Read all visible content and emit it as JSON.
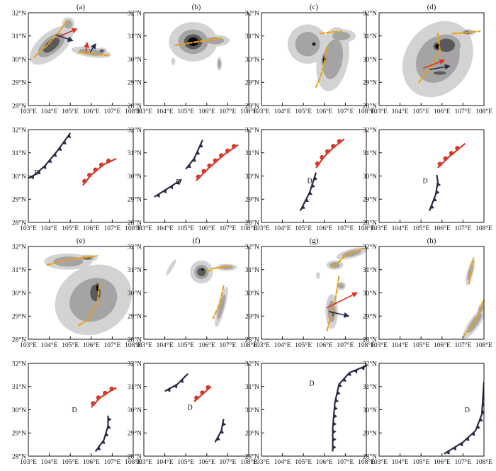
{
  "figure": {
    "lat_ticks": [
      "32°N",
      "31°N",
      "30°N",
      "29°N",
      "28°N"
    ],
    "lon_ticks": [
      "103°E",
      "104°E",
      "105°E",
      "106°E",
      "107°E",
      "108°E"
    ],
    "lat_range": [
      28,
      32
    ],
    "lon_range": [
      103,
      108
    ],
    "low_marker": "D",
    "colors": {
      "shade_light": "#d3d3d3",
      "shade_mid": "#a4a4a4",
      "shade_dark": "#5a5a5a",
      "core": "#050505",
      "shear_line": "#e8a21a",
      "arrow_red": "#d8322a",
      "arrow_navy": "#2a2c4e",
      "front_cold": "#2b2d48",
      "front_warm": "#d23a2c"
    }
  },
  "panels": [
    {
      "label": "(a)",
      "blobs": [
        {
          "lon": 104.1,
          "lat": 30.6,
          "rx": 1.25,
          "ry": 0.55,
          "rot": -40,
          "levels": 3
        },
        {
          "lon": 104.9,
          "lat": 31.5,
          "rx": 0.3,
          "ry": 0.3,
          "rot": 0,
          "levels": 2
        },
        {
          "lon": 106.0,
          "lat": 30.3,
          "rx": 0.95,
          "ry": 0.22,
          "rot": 8,
          "levels": 2
        },
        {
          "lon": 106.5,
          "lat": 30.35,
          "rx": 0.25,
          "ry": 0.15,
          "rot": 0,
          "levels": 3
        }
      ],
      "shear": [
        [
          [
            103.3,
            30.1
          ],
          [
            103.9,
            30.6
          ],
          [
            104.4,
            31.1
          ],
          [
            104.9,
            31.7
          ]
        ],
        [
          [
            105.4,
            30.3
          ],
          [
            105.9,
            30.25
          ],
          [
            106.4,
            30.2
          ],
          [
            106.9,
            30.15
          ]
        ]
      ],
      "arrows": [
        {
          "lon": 104.4,
          "lat": 30.95,
          "dlon": 0.9,
          "dlat": 0.35,
          "color": "red"
        },
        {
          "lon": 104.3,
          "lat": 31.05,
          "dlon": 0.8,
          "dlat": -0.25,
          "color": "navy"
        },
        {
          "lon": 105.75,
          "lat": 30.3,
          "dlon": 0.05,
          "dlat": 0.4,
          "color": "red"
        },
        {
          "lon": 105.95,
          "lat": 30.3,
          "dlon": 0.25,
          "dlat": 0.35,
          "color": "navy"
        }
      ]
    },
    {
      "label": "(b)",
      "blobs": [
        {
          "lon": 105.35,
          "lat": 30.75,
          "rx": 1.15,
          "ry": 0.85,
          "rot": 0,
          "levels": 4
        },
        {
          "lon": 106.4,
          "lat": 30.8,
          "rx": 0.7,
          "ry": 0.25,
          "rot": 0,
          "levels": 2
        },
        {
          "lon": 106.6,
          "lat": 29.8,
          "rx": 0.12,
          "ry": 0.3,
          "rot": 0,
          "levels": 2
        },
        {
          "lon": 104.4,
          "lat": 29.9,
          "rx": 0.1,
          "ry": 0.15,
          "rot": 0,
          "levels": 1
        }
      ],
      "shear": [
        [
          [
            104.5,
            30.6
          ],
          [
            105.2,
            30.7
          ],
          [
            105.9,
            30.8
          ],
          [
            106.7,
            30.9
          ]
        ]
      ],
      "arrows": []
    },
    {
      "label": "(c)",
      "blobs": [
        {
          "lon": 105.2,
          "lat": 30.65,
          "rx": 0.95,
          "ry": 0.85,
          "rot": 0,
          "levels": 2
        },
        {
          "lon": 106.4,
          "lat": 30.0,
          "rx": 0.75,
          "ry": 1.4,
          "rot": 10,
          "levels": 2
        },
        {
          "lon": 106.8,
          "lat": 31.0,
          "rx": 0.7,
          "ry": 0.3,
          "rot": 0,
          "levels": 2
        },
        {
          "lon": 105.5,
          "lat": 30.65,
          "rx": 0.25,
          "ry": 0.22,
          "rot": 0,
          "levels": 4
        },
        {
          "lon": 106.0,
          "lat": 30.0,
          "rx": 0.22,
          "ry": 0.5,
          "rot": 10,
          "levels": 4
        }
      ],
      "shear": [
        [
          [
            105.8,
            31.1
          ],
          [
            106.2,
            31.15
          ],
          [
            106.8,
            31.2
          ]
        ],
        [
          [
            106.1,
            30.5
          ],
          [
            106.0,
            29.8
          ],
          [
            105.8,
            29.2
          ],
          [
            105.6,
            28.8
          ]
        ]
      ],
      "arrows": []
    },
    {
      "label": "(d)",
      "blobs": [
        {
          "lon": 105.8,
          "lat": 30.0,
          "rx": 1.55,
          "ry": 1.75,
          "rot": 35,
          "levels": 2
        },
        {
          "lon": 106.2,
          "lat": 30.6,
          "rx": 1.1,
          "ry": 0.75,
          "rot": 0,
          "levels": 3
        },
        {
          "lon": 105.8,
          "lat": 30.55,
          "rx": 0.55,
          "ry": 0.45,
          "rot": 0,
          "levels": 4
        },
        {
          "lon": 105.9,
          "lat": 29.4,
          "rx": 0.8,
          "ry": 0.2,
          "rot": 0,
          "levels": 3
        },
        {
          "lon": 107.2,
          "lat": 31.15,
          "rx": 0.4,
          "ry": 0.15,
          "rot": 0,
          "levels": 3
        }
      ],
      "shear": [
        [
          [
            106.5,
            31.1
          ],
          [
            107.2,
            31.15
          ],
          [
            107.8,
            31.2
          ]
        ],
        [
          [
            105.8,
            31.1
          ],
          [
            105.9,
            30.4
          ],
          [
            105.6,
            29.8
          ],
          [
            104.9,
            29.0
          ]
        ]
      ],
      "arrows": [
        {
          "lon": 105.1,
          "lat": 29.6,
          "dlon": 1.0,
          "dlat": 0.35,
          "color": "red"
        },
        {
          "lon": 105.4,
          "lat": 29.55,
          "dlon": 0.95,
          "dlat": 0.15,
          "color": "navy"
        }
      ]
    },
    {
      "label": "",
      "lows": [
        {
          "lon": 103.4,
          "lat": 30.15
        }
      ],
      "fronts": [
        {
          "type": "cold",
          "pts": [
            [
              103.0,
              29.9
            ],
            [
              103.3,
              30.05
            ],
            [
              103.8,
              30.45
            ],
            [
              104.4,
              31.1
            ],
            [
              105.0,
              31.85
            ]
          ]
        },
        {
          "type": "warm",
          "pts": [
            [
              105.6,
              29.6
            ],
            [
              106.0,
              30.05
            ],
            [
              106.6,
              30.5
            ],
            [
              107.2,
              30.75
            ]
          ]
        }
      ]
    },
    {
      "label": "",
      "lows": [
        {
          "lon": 104.65,
          "lat": 29.75
        }
      ],
      "fronts": [
        {
          "type": "cold",
          "pts": [
            [
              103.5,
              29.1
            ],
            [
              104.2,
              29.5
            ],
            [
              104.8,
              29.85
            ]
          ]
        },
        {
          "type": "cold",
          "pts": [
            [
              105.0,
              30.3
            ],
            [
              105.4,
              30.75
            ],
            [
              105.8,
              31.55
            ]
          ]
        },
        {
          "type": "warm",
          "pts": [
            [
              105.5,
              29.8
            ],
            [
              106.1,
              30.35
            ],
            [
              106.8,
              30.9
            ],
            [
              107.5,
              31.35
            ]
          ]
        }
      ]
    },
    {
      "label": "",
      "lows": [
        {
          "lon": 105.3,
          "lat": 29.8
        }
      ],
      "fronts": [
        {
          "type": "warm",
          "pts": [
            [
              105.6,
              30.35
            ],
            [
              106.0,
              30.85
            ],
            [
              106.4,
              31.2
            ],
            [
              106.95,
              31.6
            ]
          ]
        },
        {
          "type": "cold",
          "pts": [
            [
              104.85,
              28.5
            ],
            [
              105.3,
              29.3
            ],
            [
              105.6,
              30.15
            ]
          ]
        }
      ]
    },
    {
      "label": "",
      "lows": [
        {
          "lon": 105.2,
          "lat": 29.8
        }
      ],
      "fronts": [
        {
          "type": "warm",
          "pts": [
            [
              105.8,
              30.35
            ],
            [
              106.3,
              30.8
            ],
            [
              106.7,
              31.1
            ],
            [
              107.1,
              31.4
            ]
          ]
        },
        {
          "type": "cold",
          "pts": [
            [
              105.4,
              28.5
            ],
            [
              105.7,
              29.2
            ],
            [
              105.8,
              29.75
            ],
            [
              105.75,
              30.05
            ]
          ]
        }
      ]
    },
    {
      "label": "(e)",
      "blobs": [
        {
          "lon": 106.1,
          "lat": 29.7,
          "rx": 1.9,
          "ry": 1.45,
          "rot": -30,
          "levels": 2
        },
        {
          "lon": 106.2,
          "lat": 30.0,
          "rx": 0.65,
          "ry": 0.95,
          "rot": 0,
          "levels": 3
        },
        {
          "lon": 106.3,
          "lat": 30.2,
          "rx": 0.3,
          "ry": 0.6,
          "rot": 0,
          "levels": 4
        },
        {
          "lon": 104.9,
          "lat": 31.35,
          "rx": 1.15,
          "ry": 0.35,
          "rot": 0,
          "levels": 2
        },
        {
          "lon": 105.8,
          "lat": 31.5,
          "rx": 0.5,
          "ry": 0.15,
          "rot": 0,
          "levels": 3
        }
      ],
      "shear": [
        [
          [
            103.9,
            31.2
          ],
          [
            104.7,
            31.4
          ],
          [
            105.5,
            31.5
          ],
          [
            106.3,
            31.6
          ]
        ],
        [
          [
            105.4,
            28.6
          ],
          [
            105.8,
            28.8
          ],
          [
            106.3,
            29.6
          ],
          [
            106.4,
            30.4
          ]
        ]
      ],
      "arrows": []
    },
    {
      "label": "(f)",
      "blobs": [
        {
          "lon": 105.75,
          "lat": 30.9,
          "rx": 0.55,
          "ry": 0.5,
          "rot": 0,
          "levels": 3
        },
        {
          "lon": 105.8,
          "lat": 31.0,
          "rx": 0.22,
          "ry": 0.2,
          "rot": 0,
          "levels": 4
        },
        {
          "lon": 106.95,
          "lat": 31.1,
          "rx": 0.5,
          "ry": 0.15,
          "rot": 0,
          "levels": 2
        },
        {
          "lon": 106.7,
          "lat": 29.4,
          "rx": 0.18,
          "ry": 0.9,
          "rot": 15,
          "levels": 2
        },
        {
          "lon": 104.3,
          "lat": 31.1,
          "rx": 0.1,
          "ry": 0.4,
          "rot": 30,
          "levels": 1
        }
      ],
      "shear": [
        [
          [
            106.0,
            30.9
          ],
          [
            106.3,
            31.05
          ],
          [
            107.2,
            31.15
          ]
        ],
        [
          [
            106.8,
            30.3
          ],
          [
            106.6,
            29.5
          ],
          [
            106.3,
            28.9
          ]
        ]
      ],
      "arrows": []
    },
    {
      "label": "(g)",
      "blobs": [
        {
          "lon": 107.3,
          "lat": 31.7,
          "rx": 0.75,
          "ry": 0.2,
          "rot": -15,
          "levels": 2
        },
        {
          "lon": 106.5,
          "lat": 31.2,
          "rx": 0.4,
          "ry": 0.2,
          "rot": 0,
          "levels": 2
        },
        {
          "lon": 106.35,
          "lat": 29.2,
          "rx": 0.3,
          "ry": 0.75,
          "rot": 0,
          "levels": 2
        },
        {
          "lon": 106.4,
          "lat": 29.1,
          "rx": 0.15,
          "ry": 0.3,
          "rot": 0,
          "levels": 3
        },
        {
          "lon": 106.8,
          "lat": 30.3,
          "rx": 0.22,
          "ry": 0.18,
          "rot": 0,
          "levels": 2
        },
        {
          "lon": 105.7,
          "lat": 30.75,
          "rx": 0.1,
          "ry": 0.15,
          "rot": 0,
          "levels": 1
        }
      ],
      "shear": [
        [
          [
            106.4,
            31.1
          ],
          [
            107.0,
            31.6
          ],
          [
            107.8,
            31.9
          ]
        ],
        [
          [
            106.7,
            30.7
          ],
          [
            106.5,
            29.6
          ],
          [
            106.1,
            28.3
          ]
        ]
      ],
      "arrows": [
        {
          "lon": 106.1,
          "lat": 29.35,
          "dlon": 1.45,
          "dlat": 0.65,
          "color": "red"
        },
        {
          "lon": 106.2,
          "lat": 29.2,
          "dlon": 0.95,
          "dlat": -0.2,
          "color": "navy"
        }
      ]
    },
    {
      "label": "(h)",
      "blobs": [
        {
          "lon": 107.35,
          "lat": 30.9,
          "rx": 0.15,
          "ry": 0.6,
          "rot": 15,
          "levels": 2
        },
        {
          "lon": 107.55,
          "lat": 28.7,
          "rx": 0.25,
          "ry": 0.8,
          "rot": 35,
          "levels": 2
        },
        {
          "lon": 107.85,
          "lat": 29.3,
          "rx": 0.15,
          "ry": 0.3,
          "rot": 20,
          "levels": 2
        }
      ],
      "shear": [
        [
          [
            107.3,
            30.4
          ],
          [
            107.4,
            31.1
          ],
          [
            107.5,
            31.5
          ]
        ],
        [
          [
            107.0,
            28.1
          ],
          [
            107.6,
            28.8
          ],
          [
            108.0,
            29.7
          ]
        ]
      ],
      "arrows": []
    },
    {
      "label": "",
      "lows": [
        {
          "lon": 105.2,
          "lat": 30.0
        }
      ],
      "fronts": [
        {
          "type": "warm",
          "pts": [
            [
              106.0,
              30.1
            ],
            [
              106.4,
              30.5
            ],
            [
              106.9,
              30.8
            ],
            [
              107.2,
              30.95
            ]
          ]
        },
        {
          "type": "cold",
          "pts": [
            [
              106.2,
              28.2
            ],
            [
              106.6,
              28.7
            ],
            [
              106.8,
              29.3
            ],
            [
              106.8,
              29.75
            ]
          ]
        }
      ]
    },
    {
      "label": "",
      "lows": [
        {
          "lon": 105.2,
          "lat": 30.1
        }
      ],
      "fronts": [
        {
          "type": "cold",
          "pts": [
            [
              104.0,
              30.8
            ],
            [
              104.6,
              31.1
            ],
            [
              105.1,
              31.55
            ]
          ]
        },
        {
          "type": "warm",
          "pts": [
            [
              105.4,
              30.35
            ],
            [
              105.9,
              30.75
            ],
            [
              106.2,
              31.0
            ]
          ]
        },
        {
          "type": "cold",
          "pts": [
            [
              106.4,
              28.6
            ],
            [
              106.7,
              29.1
            ],
            [
              106.8,
              29.6
            ]
          ]
        }
      ]
    },
    {
      "label": "",
      "lows": [
        {
          "lon": 105.4,
          "lat": 31.15
        }
      ],
      "fronts": [
        {
          "type": "cold",
          "pts": [
            [
              106.4,
              28.2
            ],
            [
              106.4,
              29.2
            ],
            [
              106.5,
              30.3
            ],
            [
              106.7,
              31.1
            ],
            [
              107.2,
              31.6
            ],
            [
              108.0,
              31.9
            ]
          ]
        }
      ]
    },
    {
      "label": "",
      "lows": [
        {
          "lon": 107.2,
          "lat": 30.0
        }
      ],
      "fronts": [
        {
          "type": "cold",
          "pts": [
            [
              106.1,
              28.1
            ],
            [
              107.0,
              28.6
            ],
            [
              107.6,
              29.1
            ],
            [
              107.9,
              29.8
            ],
            [
              108.0,
              31.2
            ]
          ]
        }
      ]
    }
  ]
}
